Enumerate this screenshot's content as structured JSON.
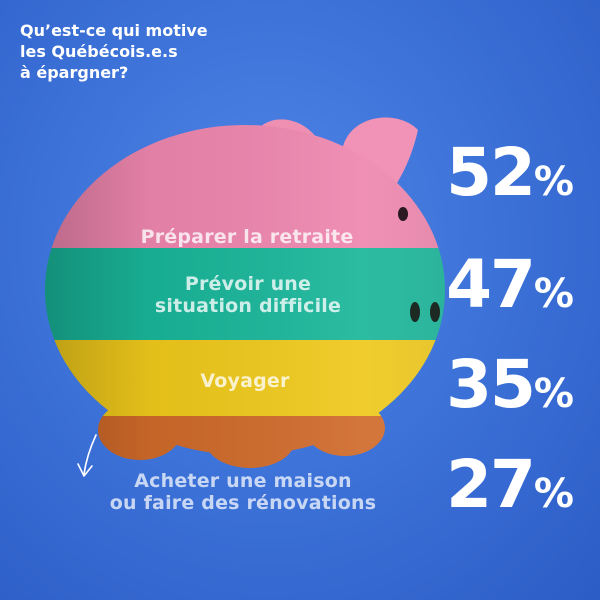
{
  "title_lines": [
    "Qu’est-ce qui motive",
    "les Québécois.e.s",
    "à épargner?"
  ],
  "chart_data": {
    "type": "bar",
    "categories": [
      [
        "Préparer la retraite"
      ],
      [
        "Prévoir une",
        "situation difficile"
      ],
      [
        "Voyager"
      ],
      [
        "Acheter une maison",
        "ou faire des rénovations"
      ]
    ],
    "values": [
      52,
      47,
      35,
      27
    ],
    "unit": "%",
    "band_colors": [
      "#ee86ae",
      "#19b69a",
      "#efc91b",
      "#cf6a2a"
    ]
  },
  "colors": {
    "background": "#3a6fd6",
    "text": "#ffffff"
  }
}
